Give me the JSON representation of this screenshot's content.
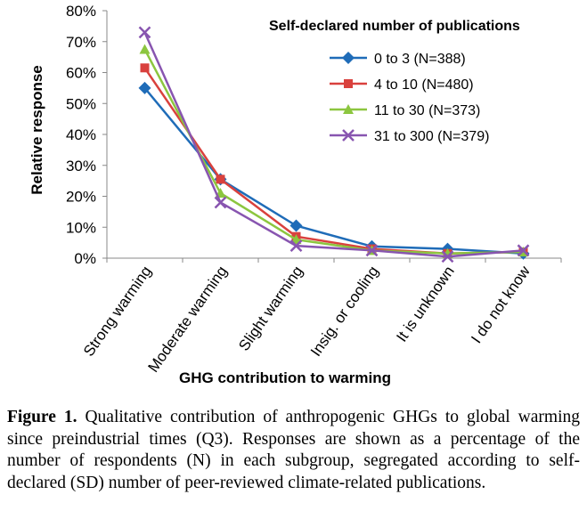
{
  "chart_data": {
    "type": "line",
    "categories": [
      "Strong warming",
      "Moderate warming",
      "Slight warming",
      "Insig. or cooling",
      "It is unknown",
      "I do not know"
    ],
    "ylabel": "Relative response",
    "xlabel": "GHG contribution to warming",
    "ylim": [
      0,
      80
    ],
    "yticks": [
      "0%",
      "10%",
      "20%",
      "30%",
      "40%",
      "50%",
      "60%",
      "70%",
      "80%"
    ],
    "legend_title": "Self-declared number of publications",
    "legend_position": "top-right",
    "series": [
      {
        "name": "0 to 3 (N=388)",
        "color": "#1f6cb8",
        "marker": "diamond",
        "values": [
          55,
          25.5,
          10.5,
          3.8,
          3,
          1.5
        ]
      },
      {
        "name": "4 to 10 (N=480)",
        "color": "#d9413d",
        "marker": "square",
        "values": [
          61.5,
          25.5,
          7,
          3,
          1.5,
          2
        ]
      },
      {
        "name": "11 to 30 (N=373)",
        "color": "#8cc63f",
        "marker": "triangle",
        "values": [
          67.5,
          21,
          6,
          2.5,
          1.5,
          2
        ]
      },
      {
        "name": "31 to 300 (N=379)",
        "color": "#8855b0",
        "marker": "x",
        "values": [
          73,
          18,
          4,
          2.5,
          0.5,
          2.5
        ]
      }
    ]
  },
  "caption": {
    "label": "Figure 1.",
    "text": "Qualitative contribution of anthropogenic GHGs to global warming since preindustrial times (Q3). Responses are shown as a percentage of the number of respondents (N) in each subgroup, segregated according to self-declared (SD) number of peer-reviewed climate-related publications."
  }
}
